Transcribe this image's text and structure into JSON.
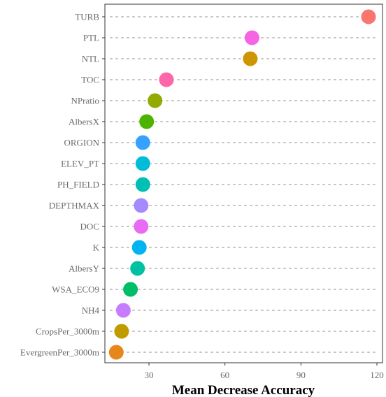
{
  "chart_data": {
    "type": "scatter",
    "style": "dot-plot",
    "xlabel": "Mean Decrease Accuracy",
    "ylabel": "",
    "xlim": [
      15,
      120
    ],
    "xticks": [
      30,
      60,
      90,
      120
    ],
    "xtick_labels": [
      "30",
      "60",
      "90",
      "120"
    ],
    "grid": false,
    "legend": "none",
    "points": [
      {
        "label": "TURB",
        "value": 116.7,
        "color": "#F8766D"
      },
      {
        "label": "PTL",
        "value": 70.7,
        "color": "#F564E3"
      },
      {
        "label": "NTL",
        "value": 70.0,
        "color": "#CD9600"
      },
      {
        "label": "TOC",
        "value": 36.9,
        "color": "#FF66A8"
      },
      {
        "label": "NPratio",
        "value": 32.4,
        "color": "#93AA00"
      },
      {
        "label": "AlbersX",
        "value": 29.1,
        "color": "#4CB400"
      },
      {
        "label": "ORGION",
        "value": 27.6,
        "color": "#35A2FF"
      },
      {
        "label": "ELEV_PT",
        "value": 27.6,
        "color": "#00BCD8"
      },
      {
        "label": "PH_FIELD",
        "value": 27.6,
        "color": "#00BFB4"
      },
      {
        "label": "DEPTHMAX",
        "value": 26.9,
        "color": "#A58AFF"
      },
      {
        "label": "DOC",
        "value": 26.9,
        "color": "#E76BF3"
      },
      {
        "label": "K",
        "value": 26.2,
        "color": "#00B4EF"
      },
      {
        "label": "AlbersY",
        "value": 25.5,
        "color": "#00C1A3"
      },
      {
        "label": "WSA_ECO9",
        "value": 22.7,
        "color": "#00BE67"
      },
      {
        "label": "NH4",
        "value": 19.9,
        "color": "#C77CFF"
      },
      {
        "label": "CropsPer_3000m",
        "value": 19.2,
        "color": "#C09B00"
      },
      {
        "label": "EvergreenPer_3000m",
        "value": 17.1,
        "color": "#E7861B"
      }
    ]
  }
}
